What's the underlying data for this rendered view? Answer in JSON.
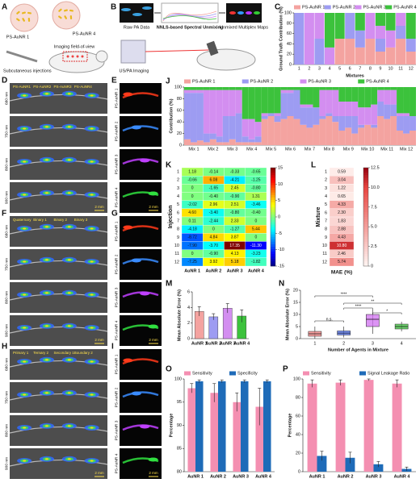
{
  "figure": {
    "A": {
      "label": "A",
      "agents": [
        "PS-AuNR 1",
        "PS-AuNR 4"
      ],
      "injection": "Subcutaneous injections",
      "fov": "Imaging field-of-view"
    },
    "B": {
      "label": "B",
      "raw": "Raw PA Data",
      "method": "NNLS-based Spectral Unmixing",
      "maps": "Unmixed Multiplex Maps",
      "imaging": "US/PA Imaging"
    },
    "D": {
      "label": "D",
      "rows": [
        "680 nm",
        "750 nm",
        "800 nm",
        "900 nm"
      ],
      "annotations": [
        "PS-AuNR1",
        "PS-AuNR2",
        "PS-AuNR3",
        "PS-AuNR4"
      ],
      "scale": "2 mm"
    },
    "E": {
      "label": "E",
      "rows": [
        "PS-AuNR 1",
        "PS-AuNR 2",
        "PS-AuNR 3",
        "PS-AuNR 4"
      ],
      "scale": "2 mm"
    },
    "F": {
      "label": "F",
      "rows": [
        "680 nm",
        "750 nm",
        "800 nm",
        "900 nm"
      ],
      "annotations": [
        "Quaternary",
        "Binary 1",
        "Binary 2",
        "Binary 3"
      ],
      "scale": "2 mm"
    },
    "G": {
      "label": "G",
      "rows": [
        "PS-AuNR 1",
        "PS-AuNR 2",
        "PS-AuNR 3",
        "PS-AuNR 4"
      ],
      "scale": "2 mm"
    },
    "H": {
      "label": "H",
      "rows": [
        "680 nm",
        "750 nm",
        "800 nm",
        "900 nm"
      ],
      "annotations": [
        "Primary 1",
        "Ternary 2",
        "Secondary 1",
        "Boundary 2"
      ],
      "scale": "2 mm"
    },
    "I": {
      "label": "I",
      "rows": [
        "PS-AuNR 1",
        "PS-AuNR 2",
        "PS-AuNR 3",
        "PS-AuNR 4"
      ],
      "scale": "2 mm"
    }
  },
  "chart_data": [
    {
      "label": "C",
      "type": "stacked_bar",
      "xlabel": "Mixtures",
      "ylabel": "Ground Truth Contribution (%)",
      "categories": [
        1,
        2,
        3,
        4,
        5,
        6,
        7,
        8,
        9,
        10,
        11,
        12
      ],
      "ylim": [
        0,
        100
      ],
      "yticks": [
        0,
        20,
        40,
        60,
        80,
        100
      ],
      "legend": "top",
      "series": [
        {
          "name": "PS-AuNR 1",
          "color": "#f4a3a0",
          "values": [
            0,
            0,
            0,
            0,
            50,
            50,
            33,
            50,
            25,
            33,
            50,
            25
          ]
        },
        {
          "name": "PS-AuNR 2",
          "color": "#9d9cf2",
          "values": [
            100,
            0,
            50,
            0,
            0,
            50,
            33,
            0,
            25,
            0,
            25,
            25
          ]
        },
        {
          "name": "PS-AuNR 3",
          "color": "#d38ef0",
          "values": [
            0,
            100,
            50,
            33,
            0,
            0,
            0,
            50,
            25,
            33,
            25,
            0
          ]
        },
        {
          "name": "PS-AuNR 4",
          "color": "#3cc23c",
          "values": [
            0,
            0,
            0,
            67,
            50,
            0,
            34,
            0,
            25,
            34,
            0,
            50
          ]
        }
      ]
    },
    {
      "label": "J",
      "type": "stacked_bar",
      "ylabel": "Contribution (%)",
      "categories": [
        null,
        "Mix 1",
        null,
        null,
        "Mix 2",
        null,
        null,
        "Mix 3",
        null,
        null,
        "Mix 4",
        null,
        null,
        "Mix 5",
        null,
        null,
        "Mix 6",
        null,
        null,
        "Mix 7",
        null,
        null,
        "Mix 8",
        null,
        null,
        "Mix 9",
        null,
        null,
        "Mix 10",
        null,
        null,
        "Mix 11",
        null,
        null,
        "Mix 12",
        null
      ],
      "ylim": [
        0,
        100
      ],
      "yticks": [
        0,
        20,
        40,
        60,
        80,
        100
      ],
      "legend": "top",
      "series": [
        {
          "name": "PS-AuNR 1",
          "color": "#f4a3a0",
          "values": [
            10,
            5,
            8,
            5,
            10,
            5,
            5,
            10,
            5,
            5,
            5,
            5,
            45,
            50,
            40,
            45,
            50,
            45,
            35,
            30,
            35,
            45,
            50,
            40,
            25,
            30,
            20,
            30,
            35,
            30,
            50,
            45,
            50,
            25,
            20,
            25
          ]
        },
        {
          "name": "PS-AuNR 2",
          "color": "#9d9cf2",
          "values": [
            80,
            85,
            82,
            15,
            10,
            10,
            45,
            40,
            50,
            10,
            5,
            10,
            5,
            5,
            10,
            45,
            40,
            50,
            30,
            35,
            30,
            5,
            5,
            10,
            25,
            20,
            30,
            5,
            0,
            5,
            25,
            25,
            20,
            25,
            30,
            25
          ]
        },
        {
          "name": "PS-AuNR 3",
          "color": "#d38ef0",
          "values": [
            5,
            5,
            5,
            75,
            75,
            80,
            45,
            45,
            40,
            30,
            35,
            25,
            5,
            0,
            5,
            5,
            5,
            0,
            5,
            5,
            0,
            45,
            40,
            45,
            25,
            25,
            25,
            30,
            30,
            35,
            20,
            25,
            25,
            5,
            5,
            0
          ]
        },
        {
          "name": "PS-AuNR 4",
          "color": "#3cc23c",
          "values": [
            5,
            5,
            5,
            5,
            5,
            5,
            5,
            5,
            5,
            55,
            55,
            60,
            45,
            45,
            45,
            5,
            5,
            5,
            30,
            30,
            35,
            5,
            5,
            5,
            25,
            25,
            25,
            35,
            35,
            30,
            5,
            5,
            5,
            45,
            45,
            50
          ]
        }
      ]
    },
    {
      "label": "K",
      "type": "heatmap",
      "colormap": "jet",
      "ylabel": "Injection",
      "categories": [
        "AuNR 1",
        "AuNR 2",
        "AuNR 3",
        "AuNR 4"
      ],
      "rows": [
        1,
        2,
        3,
        4,
        5,
        6,
        7,
        8,
        9,
        10,
        11,
        12
      ],
      "values": [
        [
          1.18,
          -0.14,
          -0.33,
          -0.65
        ],
        [
          -0.66,
          6.08,
          -4.21,
          -1.25
        ],
        [
          0,
          -1.65,
          2.45,
          -0.8
        ],
        [
          0,
          -0.4,
          -0.9,
          1.31
        ],
        [
          -2.02,
          2.96,
          2.51,
          -3.46
        ],
        [
          4.6,
          -3.4,
          -0.8,
          -0.4
        ],
        [
          0.11,
          -2.44,
          2.33,
          0
        ],
        [
          -4.18,
          0,
          -1.27,
          5.44
        ],
        [
          -8.72,
          4.84,
          3.87,
          0
        ],
        [
          -7.9,
          -3.7,
          17.35,
          -11.3
        ],
        [
          0,
          -0.9,
          4.13,
          -3.23
        ],
        [
          -7.25,
          3.92,
          5.18,
          -1.82
        ]
      ],
      "value_labels": [
        [
          "1.18",
          "-0.14",
          "-0.33",
          "-0.65"
        ],
        [
          "-0.66",
          "6.08",
          "-4.21",
          "-1.25"
        ],
        [
          "0",
          "-1.65",
          "2.45",
          "-0.80"
        ],
        [
          "0",
          "-0.40",
          "-0.90",
          "1.31"
        ],
        [
          "-2.02",
          "2.96",
          "2.51",
          "-3.46"
        ],
        [
          "4.60",
          "-3.40",
          "-0.80",
          "-0.40"
        ],
        [
          "0.11",
          "-2.44",
          "2.33",
          "0"
        ],
        [
          "-4.18",
          "0",
          "-1.27",
          "5.44"
        ],
        [
          "-8.72",
          "4.84",
          "3.87",
          "0"
        ],
        [
          "-7.90",
          "-3.70",
          "17.35",
          "-11.30"
        ],
        [
          "0",
          "-0.90",
          "4.13",
          "-3.23"
        ],
        [
          "-7.25",
          "3.92",
          "5.18",
          "-1.82"
        ]
      ],
      "clim": [
        -15,
        15
      ],
      "cticks": [
        15,
        10,
        5,
        0,
        -5,
        -10,
        -15
      ]
    },
    {
      "label": "L",
      "type": "heatmap",
      "colormap": "reds",
      "ylabel": "Mixture",
      "xlabel": "MAE (%)",
      "rows": [
        1,
        2,
        3,
        4,
        5,
        6,
        7,
        8,
        9,
        10,
        11,
        12
      ],
      "values": [
        [
          0.59
        ],
        [
          3.04
        ],
        [
          1.22
        ],
        [
          0.65
        ],
        [
          4.33
        ],
        [
          2.3
        ],
        [
          1.83
        ],
        [
          2.88
        ],
        [
          4.43
        ],
        [
          10.8
        ],
        [
          2.46
        ],
        [
          5.74
        ]
      ],
      "value_labels": [
        [
          "0.59"
        ],
        [
          "3.04"
        ],
        [
          "1.22"
        ],
        [
          "0.65"
        ],
        [
          "4.33"
        ],
        [
          "2.30"
        ],
        [
          "1.83"
        ],
        [
          "2.88"
        ],
        [
          "4.43"
        ],
        [
          "10.80"
        ],
        [
          "2.46"
        ],
        [
          "5.74"
        ]
      ],
      "clim": [
        0,
        12.5
      ],
      "cticks": [
        0,
        2.5,
        {
          "value": 5,
          "label": "5.0"
        },
        7.5,
        {
          "value": 10,
          "label": "10.0"
        },
        12.5
      ]
    },
    {
      "label": "M",
      "type": "bar",
      "ylabel": "Mean Absolute Error (%)",
      "categories": [
        "AuNR 1",
        "AuNR 2",
        "AuNR 3",
        "AuNR 4"
      ],
      "values": [
        3.5,
        2.8,
        3.9,
        2.9
      ],
      "errors": [
        0.6,
        0.4,
        0.6,
        0.8
      ],
      "colors": [
        "#f4a3a0",
        "#9d9cf2",
        "#d38ef0",
        "#3cc23c"
      ],
      "ylim": [
        0,
        6
      ],
      "yticks": [
        0,
        2,
        4,
        6
      ]
    },
    {
      "label": "N",
      "type": "box",
      "ylabel": "Mean Absolute Error (%)",
      "xlabel": "Number of Agents in Mixture",
      "categories": [
        1,
        2,
        3,
        4
      ],
      "boxes": [
        {
          "min": 0,
          "q1": 1,
          "median": 2,
          "q3": 3,
          "max": 5
        },
        {
          "min": 0.5,
          "q1": 1.5,
          "median": 2.3,
          "q3": 3.2,
          "max": 5
        },
        {
          "min": 2,
          "q1": 5,
          "median": 8,
          "q3": 10,
          "max": 12
        },
        {
          "min": 3,
          "q1": 4,
          "median": 5,
          "q3": 6,
          "max": 7
        }
      ],
      "colors": [
        "#f08080",
        "#4a6cf0",
        "#d070f0",
        "#3cc23c"
      ],
      "annotations": [
        "n.s.",
        "****",
        "**",
        "*",
        "****"
      ],
      "ylim": [
        0,
        20
      ],
      "yticks": [
        0,
        5,
        10,
        15,
        20
      ]
    },
    {
      "label": "O",
      "type": "grouped_bar",
      "ylabel": "Percentage",
      "categories": [
        "AuNR 1",
        "AuNR 2",
        "AuNR 3",
        "AuNR 4"
      ],
      "legend": "top",
      "ylim": [
        80,
        100
      ],
      "yticks": [
        80,
        85,
        90,
        95,
        100
      ],
      "series": [
        {
          "name": "Sensitivity",
          "color": "#f48fb1",
          "values": [
            98,
            97,
            95,
            94
          ],
          "errors": [
            1,
            2,
            2,
            4
          ]
        },
        {
          "name": "Specificity",
          "color": "#1e6bb8",
          "values": [
            99.5,
            99.5,
            99.5,
            99.5
          ],
          "errors": [
            0.3,
            0.3,
            0.3,
            0.3
          ]
        }
      ]
    },
    {
      "label": "P",
      "type": "grouped_bar",
      "ylabel": "Percentage",
      "categories": [
        "AuNR 1",
        "AuNR 2",
        "AuNR 3",
        "AuNR 4"
      ],
      "legend": "top",
      "ylim": [
        0,
        100
      ],
      "yticks": [
        0,
        20,
        40,
        60,
        80,
        100
      ],
      "series": [
        {
          "name": "Sensitivity",
          "color": "#f48fb1",
          "values": [
            95,
            96,
            99,
            95
          ],
          "errors": [
            4,
            3,
            1,
            4
          ]
        },
        {
          "name": "Signal Leakage Ratio",
          "color": "#1e6bb8",
          "values": [
            17,
            15,
            8,
            3
          ],
          "errors": [
            5,
            6,
            3,
            2
          ]
        }
      ]
    }
  ]
}
